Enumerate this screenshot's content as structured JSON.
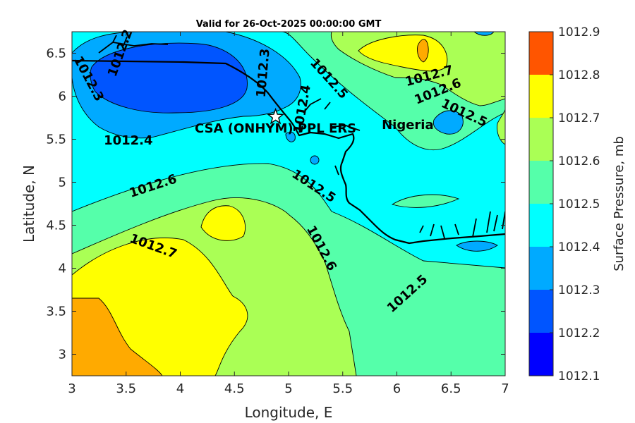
{
  "chart_data": {
    "type": "filled-contour",
    "title": "Valid for 26-Oct-2025 00:00:00 GMT",
    "xlabel": "Longitude, E",
    "ylabel": "Latitude, N",
    "xlim": [
      3,
      7
    ],
    "ylim": [
      2.75,
      6.75
    ],
    "x_ticks": [
      3,
      3.5,
      4,
      4.5,
      5,
      5.5,
      6,
      6.5,
      7
    ],
    "x_tick_labels": [
      "3",
      "3.5",
      "4",
      "4.5",
      "5",
      "5.5",
      "6",
      "6.5",
      "7"
    ],
    "y_ticks": [
      3,
      3.5,
      4,
      4.5,
      5,
      5.5,
      6,
      6.5
    ],
    "y_tick_labels": [
      "3",
      "3.5",
      "4",
      "4.5",
      "5",
      "5.5",
      "6",
      "6.5"
    ],
    "colorbar": {
      "label": "Surface Pressure, mb",
      "levels": [
        1012.1,
        1012.2,
        1012.3,
        1012.4,
        1012.5,
        1012.6,
        1012.7,
        1012.8,
        1012.9
      ],
      "tick_labels": [
        "1012.1",
        "1012.2",
        "1012.3",
        "1012.4",
        "1012.5",
        "1012.6",
        "1012.7",
        "1012.8",
        "1012.9"
      ],
      "colors": [
        "#0000ff",
        "#0055ff",
        "#00aaff",
        "#00ffff",
        "#55ffaa",
        "#aaff55",
        "#ffff00",
        "#ffaa00",
        "#ff5500"
      ]
    },
    "contour_labels": [
      {
        "text": "1012.3",
        "lon": 3.15,
        "lat": 6.2,
        "angle": 62
      },
      {
        "text": "1012.2",
        "lon": 3.45,
        "lat": 6.5,
        "angle": -70
      },
      {
        "text": "1012.3",
        "lon": 4.77,
        "lat": 6.27,
        "angle": -85
      },
      {
        "text": "1012.4",
        "lon": 5.13,
        "lat": 5.85,
        "angle": -80
      },
      {
        "text": "1012.4",
        "lon": 3.52,
        "lat": 5.48,
        "angle": 0
      },
      {
        "text": "1012.5",
        "lon": 5.37,
        "lat": 6.2,
        "angle": 48
      },
      {
        "text": "1012.7",
        "lon": 6.3,
        "lat": 6.23,
        "angle": -15
      },
      {
        "text": "1012.6",
        "lon": 6.38,
        "lat": 6.05,
        "angle": -22
      },
      {
        "text": "1012.5",
        "lon": 6.62,
        "lat": 5.8,
        "angle": 25
      },
      {
        "text": "1012.6",
        "lon": 3.75,
        "lat": 4.95,
        "angle": -18
      },
      {
        "text": "1012.5",
        "lon": 5.23,
        "lat": 4.95,
        "angle": 33
      },
      {
        "text": "1012.6",
        "lon": 5.3,
        "lat": 4.23,
        "angle": 62
      },
      {
        "text": "1012.7",
        "lon": 3.75,
        "lat": 4.25,
        "angle": 20
      },
      {
        "text": "1012.5",
        "lon": 6.1,
        "lat": 3.7,
        "angle": -42
      }
    ],
    "annotations": [
      {
        "text": "CSA (ONHYM) PPL ERS",
        "marker": "star",
        "lon": 4.88,
        "lat": 5.76
      },
      {
        "text": "Nigeria",
        "lon": 6.1,
        "lat": 5.62
      }
    ]
  }
}
